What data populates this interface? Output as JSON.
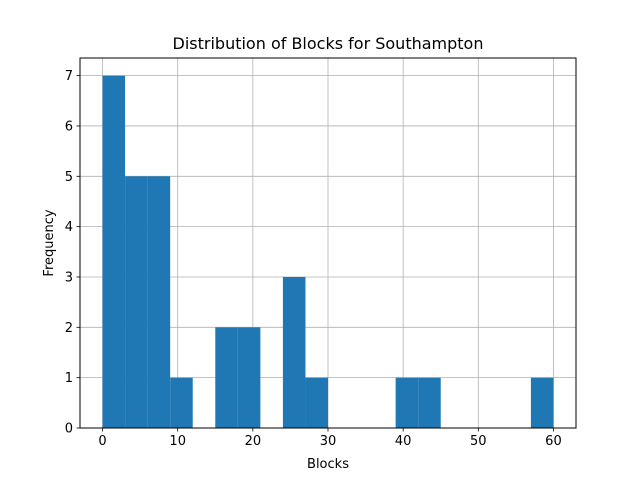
{
  "chart_data": {
    "type": "bar",
    "title": "Distribution of Blocks for Southampton",
    "xlabel": "Blocks",
    "ylabel": "Frequency",
    "xlim": [
      -3,
      63
    ],
    "ylim": [
      0,
      7.35
    ],
    "x_ticks": [
      0,
      10,
      20,
      30,
      40,
      50,
      60
    ],
    "y_ticks": [
      0,
      1,
      2,
      3,
      4,
      5,
      6,
      7
    ],
    "grid": true,
    "bar_color": "#1f77b4",
    "bins": [
      {
        "x0": 0,
        "x1": 3,
        "count": 7
      },
      {
        "x0": 3,
        "x1": 6,
        "count": 5
      },
      {
        "x0": 6,
        "x1": 9,
        "count": 5
      },
      {
        "x0": 9,
        "x1": 12,
        "count": 1
      },
      {
        "x0": 12,
        "x1": 15,
        "count": 0
      },
      {
        "x0": 15,
        "x1": 18,
        "count": 2
      },
      {
        "x0": 18,
        "x1": 21,
        "count": 2
      },
      {
        "x0": 21,
        "x1": 24,
        "count": 0
      },
      {
        "x0": 24,
        "x1": 27,
        "count": 3
      },
      {
        "x0": 27,
        "x1": 30,
        "count": 1
      },
      {
        "x0": 30,
        "x1": 33,
        "count": 0
      },
      {
        "x0": 33,
        "x1": 36,
        "count": 0
      },
      {
        "x0": 36,
        "x1": 39,
        "count": 0
      },
      {
        "x0": 39,
        "x1": 42,
        "count": 1
      },
      {
        "x0": 42,
        "x1": 45,
        "count": 1
      },
      {
        "x0": 45,
        "x1": 48,
        "count": 0
      },
      {
        "x0": 48,
        "x1": 51,
        "count": 0
      },
      {
        "x0": 51,
        "x1": 54,
        "count": 0
      },
      {
        "x0": 54,
        "x1": 57,
        "count": 0
      },
      {
        "x0": 57,
        "x1": 60,
        "count": 1
      }
    ]
  }
}
